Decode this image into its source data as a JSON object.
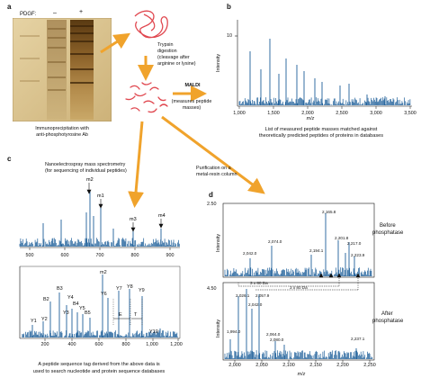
{
  "panel_a": {
    "letter": "a",
    "pdgf_label": "PDGF:",
    "minus": "–",
    "plus": "+",
    "caption_line1": "Immunoprecipitation with",
    "caption_line2": "anti-phosphotyrosine Ab",
    "trypsin_line1": "Trypsin",
    "trypsin_line2": "digestion",
    "trypsin_line3": "(cleavage after",
    "trypsin_line4": "arginine or lysine)",
    "maldi_title": "MALDI",
    "maldi_line1": "(measures peptide",
    "maldi_line2": "masses)"
  },
  "panel_b": {
    "letter": "b",
    "ylabel": "Intensity",
    "xlabel": "m/z",
    "y_tick": "10",
    "x_ticks": [
      "1,000",
      "1,500",
      "2,000",
      "2,500",
      "3,000",
      "3,500"
    ],
    "caption_line1": "List of measured peptide masses matched against",
    "caption_line2": "theoretically predicted peptides of proteins in databases"
  },
  "panel_c": {
    "letter": "c",
    "title_line1": "Nanoelectrospray mass spectrometry",
    "title_line2": "(for sequencing of individual peptides)",
    "top_x_ticks": [
      "500",
      "600",
      "700",
      "800",
      "900"
    ],
    "top_peaks": [
      "m1",
      "m2",
      "m3",
      "m4"
    ],
    "bottom_peaks": [
      "m2",
      "B3",
      "B2",
      "Y4",
      "B4",
      "Y5",
      "B5",
      "Y3",
      "Y1",
      "Y2",
      "Y6",
      "Y7",
      "Y8",
      "Y9",
      "Y10",
      "E",
      "T"
    ],
    "bottom_x_ticks": [
      "200",
      "400",
      "600",
      "800",
      "1,000",
      "1,200"
    ],
    "caption_line1": "A peptide sequence tag derived from the above data is",
    "caption_line2": "used to search nucleotide and protein sequence databases"
  },
  "purification": {
    "line1": "Purification on a",
    "line2": "metal-resin column"
  },
  "panel_d": {
    "letter": "d",
    "ylabel": "Intensity",
    "xlabel": "m/z",
    "top_y_tick": "2.50",
    "bottom_y_tick": "4.50",
    "x_ticks": [
      "2,000",
      "2,050",
      "2,100",
      "2,150",
      "2,200",
      "2,250"
    ],
    "before_line1": "Before",
    "before_line2": "phosphatase",
    "after_line1": "After",
    "after_line2": "phosphatase",
    "top_peak_labels": [
      "2,165.8",
      "2,074.0",
      "2,201.8",
      "2,217.0",
      "2,194.1",
      "2,042.0",
      "2,223.9"
    ],
    "bottom_peak_labels": [
      "2,026.1",
      "2,057.9",
      "2,042.0",
      "1,994.0",
      "2,064.0",
      "2,080.0",
      "2,237.1"
    ],
    "shift1": "3 x 80 Da",
    "shift2": "3 x 80 Da"
  },
  "colors": {
    "spectrum": "#1d5f99",
    "arrow": "#f0a32c",
    "peptide": "#e0474f",
    "gel_light": "#d8bf86",
    "gel_dark": "#6b4a1d"
  }
}
